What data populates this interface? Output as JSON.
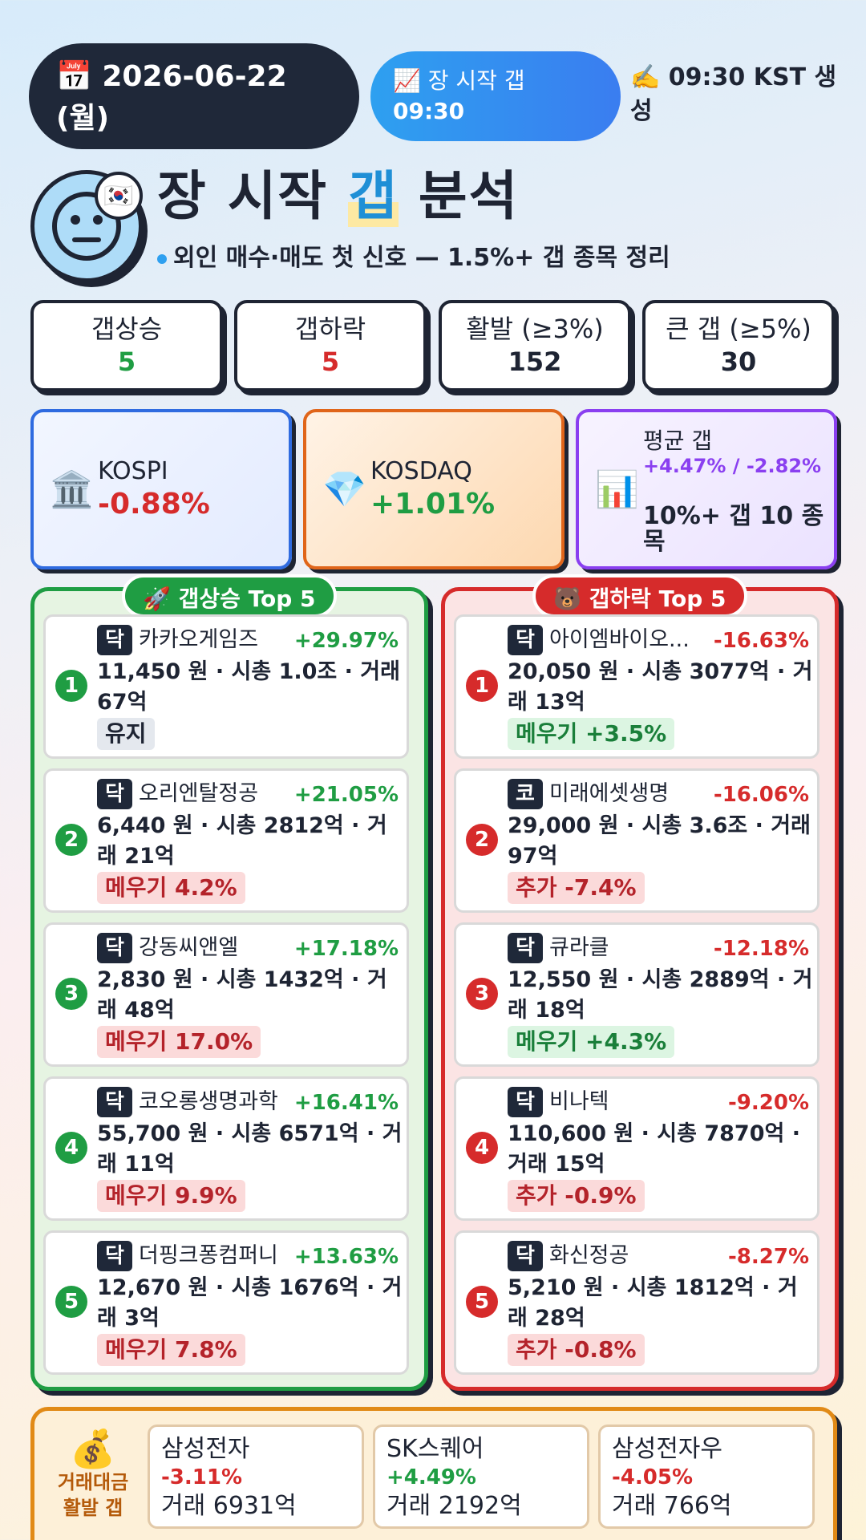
{
  "header": {
    "date": "📅 2026-06-22 (월)",
    "gap_label": "📈 장 시작 갭",
    "gap_time": "09:30",
    "generated": "✍️ 09:30 KST 생성"
  },
  "title": {
    "pre": "장 시작 ",
    "highlight": "갭",
    "post": " 분석",
    "subtitle": "외인 매수·매도 첫 신호 — 1.5%+ 갭 종목 정리",
    "flag": "🇰🇷"
  },
  "stats": [
    {
      "label": "갭상승",
      "value": "5",
      "color": "#1f9d43"
    },
    {
      "label": "갭하락",
      "value": "5",
      "color": "#d62b2b"
    },
    {
      "label": "활발 (≥3%)",
      "value": "152",
      "color": "#1e2433"
    },
    {
      "label": "큰 갭 (≥5%)",
      "value": "30",
      "color": "#1e2433"
    }
  ],
  "indices": {
    "kospi": {
      "icon": "🏛️",
      "name": "KOSPI",
      "change": "-0.88%"
    },
    "kosdaq": {
      "icon": "💎",
      "name": "KOSDAQ",
      "change": "+1.01%"
    },
    "avg": {
      "icon": "📊",
      "label": "평균 갭",
      "value": "+4.47% / -2.82%",
      "note": "10%+ 갭 10 종목"
    }
  },
  "up_panel": {
    "title": "🚀 갭상승 Top 5",
    "items": [
      {
        "rank": "1",
        "market": "닥",
        "name": "카카오게임즈",
        "pct": "+29.97%",
        "info": "11,450 원 · 시총 1.0조 · 거래 67억",
        "chip": "유지",
        "chip_type": "neutral"
      },
      {
        "rank": "2",
        "market": "닥",
        "name": "오리엔탈정공",
        "pct": "+21.05%",
        "info": "6,440 원 · 시총 2812억 · 거래 21억",
        "chip": "메우기 4.2%",
        "chip_type": "down"
      },
      {
        "rank": "3",
        "market": "닥",
        "name": "강동씨앤엘",
        "pct": "+17.18%",
        "info": "2,830 원 · 시총 1432억 · 거래 48억",
        "chip": "메우기 17.0%",
        "chip_type": "down"
      },
      {
        "rank": "4",
        "market": "닥",
        "name": "코오롱생명과학",
        "pct": "+16.41%",
        "info": "55,700 원 · 시총 6571억 · 거래 11억",
        "chip": "메우기 9.9%",
        "chip_type": "down"
      },
      {
        "rank": "5",
        "market": "닥",
        "name": "더핑크퐁컴퍼니",
        "pct": "+13.63%",
        "info": "12,670 원 · 시총 1676억 · 거래 3억",
        "chip": "메우기 7.8%",
        "chip_type": "down"
      }
    ]
  },
  "down_panel": {
    "title": "🐻 갭하락 Top 5",
    "items": [
      {
        "rank": "1",
        "market": "닥",
        "name": "아이엠바이오...",
        "pct": "-16.63%",
        "info": "20,050 원 · 시총 3077억 · 거래 13억",
        "chip": "메우기 +3.5%",
        "chip_type": "up"
      },
      {
        "rank": "2",
        "market": "코",
        "name": "미래에셋생명",
        "pct": "-16.06%",
        "info": "29,000 원 · 시총 3.6조 · 거래 97억",
        "chip": "추가 -7.4%",
        "chip_type": "down"
      },
      {
        "rank": "3",
        "market": "닥",
        "name": "큐라클",
        "pct": "-12.18%",
        "info": "12,550 원 · 시총 2889억 · 거래 18억",
        "chip": "메우기 +4.3%",
        "chip_type": "up"
      },
      {
        "rank": "4",
        "market": "닥",
        "name": "비나텍",
        "pct": "-9.20%",
        "info": "110,600 원 · 시총 7870억 · 거래 15억",
        "chip": "추가 -0.9%",
        "chip_type": "down"
      },
      {
        "rank": "5",
        "market": "닥",
        "name": "화신정공",
        "pct": "-8.27%",
        "info": "5,210 원 · 시총 1812억 · 거래 28억",
        "chip": "추가 -0.8%",
        "chip_type": "down"
      }
    ]
  },
  "volume": {
    "icon": "💰",
    "label_line1": "거래대금",
    "label_line2": "활발 갭",
    "items": [
      {
        "name": "삼성전자",
        "pct": "-3.11%",
        "volume": "거래 6931억"
      },
      {
        "name": "SK스퀘어",
        "pct": "+4.49%",
        "volume": "거래 2192억"
      },
      {
        "name": "삼성전자우",
        "pct": "-4.05%",
        "volume": "거래 766억"
      }
    ]
  }
}
